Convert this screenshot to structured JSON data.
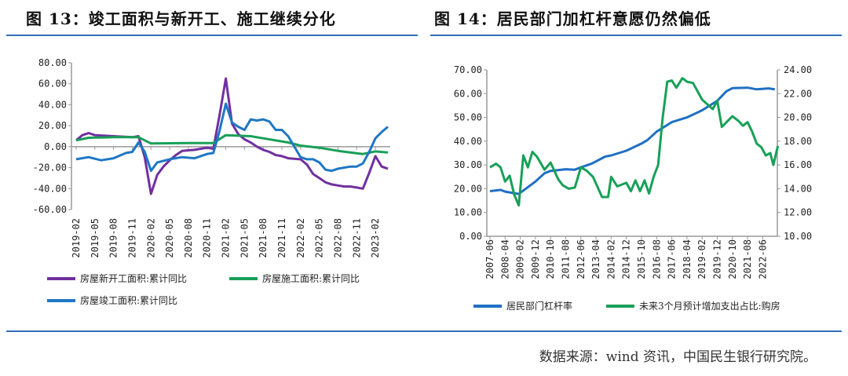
{
  "left": {
    "title": "图 13：竣工面积与新开工、施工继续分化"
  },
  "right": {
    "title": "图 14：居民部门加杠杆意愿仍然偏低"
  },
  "source": "数据来源：wind 资讯，中国民生银行研究院。",
  "chart_data": [
    {
      "type": "line",
      "ylim": [
        -60,
        80
      ],
      "yticks": [
        "80.00",
        "60.00",
        "40.00",
        "20.00",
        "0.00",
        "-20.00",
        "-40.00",
        "-60.00"
      ],
      "xticks": [
        "2019-02",
        "2019-05",
        "2019-08",
        "2019-11",
        "2020-02",
        "2020-05",
        "2020-08",
        "2020-11",
        "2021-02",
        "2021-05",
        "2021-08",
        "2021-11",
        "2022-02",
        "2022-05",
        "2022-08",
        "2022-11",
        "2023-02"
      ],
      "legend": "bottom",
      "series": [
        {
          "name": "房屋新开工面积:累计同比",
          "color": "#7030a0",
          "points": [
            [
              "2019-02",
              6
            ],
            [
              "2019-03",
              11
            ],
            [
              "2019-04",
              13
            ],
            [
              "2019-05",
              11
            ],
            [
              "2019-08",
              10
            ],
            [
              "2019-11",
              9
            ],
            [
              "2019-12",
              10
            ],
            [
              "2020-01",
              -10
            ],
            [
              "2020-02",
              -45
            ],
            [
              "2020-03",
              -27
            ],
            [
              "2020-04",
              -19
            ],
            [
              "2020-05",
              -13
            ],
            [
              "2020-06",
              -8
            ],
            [
              "2020-07",
              -4
            ],
            [
              "2020-08",
              -3.5
            ],
            [
              "2020-09",
              -3
            ],
            [
              "2020-10",
              -2
            ],
            [
              "2020-11",
              -1
            ],
            [
              "2020-12",
              -2
            ],
            [
              "2021-01",
              30
            ],
            [
              "2021-02",
              65
            ],
            [
              "2021-03",
              22
            ],
            [
              "2021-04",
              12
            ],
            [
              "2021-05",
              7
            ],
            [
              "2021-06",
              4
            ],
            [
              "2021-07",
              0
            ],
            [
              "2021-08",
              -3
            ],
            [
              "2021-09",
              -5
            ],
            [
              "2021-10",
              -8
            ],
            [
              "2021-11",
              -9
            ],
            [
              "2021-12",
              -11
            ],
            [
              "2022-02",
              -12
            ],
            [
              "2022-03",
              -17
            ],
            [
              "2022-04",
              -26
            ],
            [
              "2022-05",
              -30
            ],
            [
              "2022-06",
              -34
            ],
            [
              "2022-07",
              -36
            ],
            [
              "2022-08",
              -37
            ],
            [
              "2022-09",
              -38
            ],
            [
              "2022-10",
              -38
            ],
            [
              "2022-11",
              -39
            ],
            [
              "2022-12",
              -40
            ],
            [
              "2023-01",
              -25
            ],
            [
              "2023-02",
              -9
            ],
            [
              "2023-03",
              -19
            ],
            [
              "2023-04",
              -21
            ]
          ]
        },
        {
          "name": "房屋施工面积:累计同比",
          "color": "#18a058",
          "points": [
            [
              "2019-02",
              6
            ],
            [
              "2019-04",
              8.5
            ],
            [
              "2019-08",
              9
            ],
            [
              "2019-12",
              9
            ],
            [
              "2020-02",
              3
            ],
            [
              "2020-08",
              3.5
            ],
            [
              "2020-12",
              3.5
            ],
            [
              "2021-02",
              11
            ],
            [
              "2021-06",
              10
            ],
            [
              "2021-08",
              8
            ],
            [
              "2021-12",
              4
            ],
            [
              "2022-02",
              1
            ],
            [
              "2022-05",
              -1
            ],
            [
              "2022-08",
              -4
            ],
            [
              "2022-12",
              -7
            ],
            [
              "2023-02",
              -4.5
            ],
            [
              "2023-04",
              -5.5
            ]
          ]
        },
        {
          "name": "房屋竣工面积:累计同比",
          "color": "#1f77c4",
          "points": [
            [
              "2019-02",
              -12
            ],
            [
              "2019-04",
              -10
            ],
            [
              "2019-06",
              -13
            ],
            [
              "2019-08",
              -11
            ],
            [
              "2019-10",
              -6
            ],
            [
              "2019-11",
              -5
            ],
            [
              "2019-12",
              4
            ],
            [
              "2020-01",
              -5
            ],
            [
              "2020-02",
              -23
            ],
            [
              "2020-03",
              -15
            ],
            [
              "2020-05",
              -12
            ],
            [
              "2020-07",
              -10
            ],
            [
              "2020-09",
              -11
            ],
            [
              "2020-11",
              -7
            ],
            [
              "2020-12",
              -6
            ],
            [
              "2021-01",
              15
            ],
            [
              "2021-02",
              41
            ],
            [
              "2021-03",
              23
            ],
            [
              "2021-04",
              19
            ],
            [
              "2021-05",
              16
            ],
            [
              "2021-06",
              26
            ],
            [
              "2021-07",
              25
            ],
            [
              "2021-08",
              26
            ],
            [
              "2021-09",
              24
            ],
            [
              "2021-10",
              16
            ],
            [
              "2021-11",
              16
            ],
            [
              "2021-12",
              10
            ],
            [
              "2022-02",
              -10
            ],
            [
              "2022-03",
              -12
            ],
            [
              "2022-04",
              -12
            ],
            [
              "2022-05",
              -15
            ],
            [
              "2022-06",
              -22
            ],
            [
              "2022-07",
              -23
            ],
            [
              "2022-08",
              -21
            ],
            [
              "2022-10",
              -19
            ],
            [
              "2022-11",
              -19
            ],
            [
              "2022-12",
              -16
            ],
            [
              "2023-01",
              -5
            ],
            [
              "2023-02",
              8
            ],
            [
              "2023-03",
              14
            ],
            [
              "2023-04",
              19
            ]
          ]
        }
      ]
    },
    {
      "type": "line",
      "ylim": [
        0,
        70
      ],
      "y2lim": [
        10,
        24
      ],
      "yticks": [
        "70.00",
        "60.00",
        "50.00",
        "40.00",
        "30.00",
        "20.00",
        "10.00",
        "0.00"
      ],
      "y2ticks": [
        "24.00",
        "22.00",
        "20.00",
        "18.00",
        "16.00",
        "14.00",
        "12.00",
        "10.00"
      ],
      "xticks": [
        "2007-06",
        "2008-04",
        "2009-02",
        "2009-12",
        "2010-10",
        "2011-08",
        "2012-06",
        "2013-04",
        "2014-02",
        "2014-12",
        "2015-10",
        "2016-08",
        "2017-06",
        "2018-04",
        "2019-02",
        "2019-12",
        "2020-10",
        "2021-08",
        "2022-06"
      ],
      "legend": "bottom",
      "series": [
        {
          "name": "居民部门杠杆率",
          "axis": "left",
          "color": "#1f6fc4",
          "points": [
            [
              "2007-06",
              19
            ],
            [
              "2008-01",
              19.5
            ],
            [
              "2008-04",
              18.8
            ],
            [
              "2009-01",
              17.8
            ],
            [
              "2009-12",
              23
            ],
            [
              "2010-06",
              26.5
            ],
            [
              "2010-10",
              27.5
            ],
            [
              "2011-08",
              28.2
            ],
            [
              "2012-02",
              28
            ],
            [
              "2012-06",
              29
            ],
            [
              "2013-01",
              30.5
            ],
            [
              "2013-10",
              33.5
            ],
            [
              "2014-02",
              34
            ],
            [
              "2014-12",
              36
            ],
            [
              "2015-10",
              39
            ],
            [
              "2016-02",
              40.5
            ],
            [
              "2016-08",
              44
            ],
            [
              "2017-06",
              48
            ],
            [
              "2018-04",
              50
            ],
            [
              "2019-02",
              53
            ],
            [
              "2019-12",
              57
            ],
            [
              "2020-06",
              61
            ],
            [
              "2020-10",
              62.3
            ],
            [
              "2021-08",
              62.5
            ],
            [
              "2022-02",
              61.8
            ],
            [
              "2022-10",
              62.2
            ],
            [
              "2023-02",
              61.8
            ]
          ]
        },
        {
          "name": "未来3个月预计增加支出占比:购房",
          "axis": "right",
          "color": "#18a058",
          "points": [
            [
              "2007-06",
              15.8
            ],
            [
              "2007-10",
              16.1
            ],
            [
              "2008-01",
              15.8
            ],
            [
              "2008-04",
              14.6
            ],
            [
              "2008-07",
              15.1
            ],
            [
              "2008-10",
              13.5
            ],
            [
              "2009-01",
              12.6
            ],
            [
              "2009-04",
              16.8
            ],
            [
              "2009-07",
              15.8
            ],
            [
              "2009-10",
              17.1
            ],
            [
              "2010-01",
              16.7
            ],
            [
              "2010-06",
              15.6
            ],
            [
              "2010-10",
              16.2
            ],
            [
              "2011-03",
              14.8
            ],
            [
              "2011-06",
              14.3
            ],
            [
              "2011-10",
              14
            ],
            [
              "2012-02",
              14.1
            ],
            [
              "2012-06",
              15.8
            ],
            [
              "2012-10",
              15.5
            ],
            [
              "2013-02",
              15
            ],
            [
              "2013-08",
              13.3
            ],
            [
              "2013-12",
              13.3
            ],
            [
              "2014-02",
              15
            ],
            [
              "2014-06",
              14.2
            ],
            [
              "2014-12",
              14.5
            ],
            [
              "2015-03",
              13.8
            ],
            [
              "2015-06",
              14.7
            ],
            [
              "2015-09",
              13.8
            ],
            [
              "2015-12",
              14.7
            ],
            [
              "2016-03",
              13.6
            ],
            [
              "2016-06",
              15
            ],
            [
              "2016-09",
              16
            ],
            [
              "2016-12",
              20
            ],
            [
              "2017-03",
              23
            ],
            [
              "2017-06",
              23.1
            ],
            [
              "2017-09",
              22.5
            ],
            [
              "2018-01",
              23.3
            ],
            [
              "2018-04",
              23
            ],
            [
              "2018-08",
              22.9
            ],
            [
              "2019-02",
              21.5
            ],
            [
              "2019-09",
              20.7
            ],
            [
              "2019-12",
              21.4
            ],
            [
              "2020-03",
              19.2
            ],
            [
              "2020-10",
              20.1
            ],
            [
              "2021-02",
              19.7
            ],
            [
              "2021-05",
              19.3
            ],
            [
              "2021-08",
              19.6
            ],
            [
              "2021-11",
              18.8
            ],
            [
              "2022-02",
              17.8
            ],
            [
              "2022-05",
              17.5
            ],
            [
              "2022-08",
              16.8
            ],
            [
              "2022-11",
              17
            ],
            [
              "2023-01",
              16
            ],
            [
              "2023-04",
              17.6
            ]
          ]
        }
      ]
    }
  ]
}
